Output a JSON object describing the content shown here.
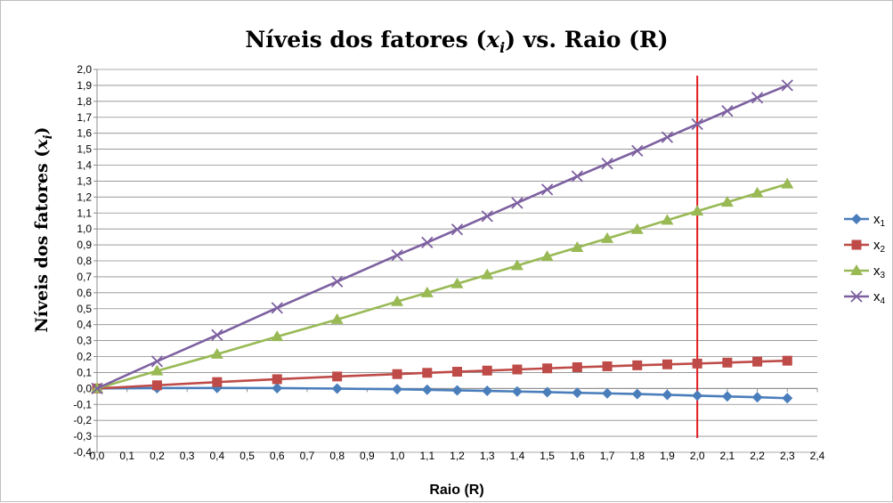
{
  "chart_data": {
    "type": "line",
    "title_main": "Níveis dos fatores (",
    "title_var": "x",
    "title_sub": "i",
    "title_end": ") vs. Raio (R)",
    "ylabel_main": "Níveis dos fatores (",
    "ylabel_var": "x",
    "ylabel_sub": "i",
    "ylabel_end": ")",
    "xlabel": "Raio (R)",
    "xlim": [
      0.0,
      2.4
    ],
    "ylim": [
      -0.4,
      2.0
    ],
    "x_ticks": [
      "0,0",
      "0,1",
      "0,2",
      "0,3",
      "0,4",
      "0,5",
      "0,6",
      "0,7",
      "0,8",
      "0,9",
      "1,0",
      "1,1",
      "1,2",
      "1,3",
      "1,4",
      "1,5",
      "1,6",
      "1,7",
      "1,8",
      "1,9",
      "2,0",
      "2,1",
      "2,2",
      "2,3",
      "2,4"
    ],
    "y_ticks": [
      "-0,4",
      "-0,3",
      "-0,2",
      "-0,1",
      "0,0",
      "0,1",
      "0,2",
      "0,3",
      "0,4",
      "0,5",
      "0,6",
      "0,7",
      "0,8",
      "0,9",
      "1,0",
      "1,1",
      "1,2",
      "1,3",
      "1,4",
      "1,5",
      "1,6",
      "1,7",
      "1,8",
      "1,9",
      "2,0"
    ],
    "grid": true,
    "legend_position": "right",
    "vertical_line": {
      "x": 2.0,
      "color": "#e31a1c"
    },
    "x": [
      0.0,
      0.2,
      0.4,
      0.6,
      0.8,
      1.0,
      1.1,
      1.2,
      1.3,
      1.4,
      1.5,
      1.6,
      1.7,
      1.8,
      1.9,
      2.0,
      2.1,
      2.2,
      2.3
    ],
    "series": [
      {
        "name": "x",
        "sub": "1",
        "color": "#4a7ebb",
        "marker": "diamond",
        "values": [
          0.0,
          0.002,
          0.003,
          0.002,
          -0.001,
          -0.005,
          -0.008,
          -0.012,
          -0.015,
          -0.019,
          -0.023,
          -0.027,
          -0.031,
          -0.035,
          -0.04,
          -0.045,
          -0.05,
          -0.055,
          -0.061
        ]
      },
      {
        "name": "x",
        "sub": "2",
        "color": "#be4b48",
        "marker": "square",
        "values": [
          0.0,
          0.02,
          0.04,
          0.058,
          0.075,
          0.09,
          0.098,
          0.105,
          0.112,
          0.119,
          0.126,
          0.133,
          0.139,
          0.145,
          0.151,
          0.156,
          0.162,
          0.168,
          0.174
        ]
      },
      {
        "name": "x",
        "sub": "3",
        "color": "#98b954",
        "marker": "triangle",
        "values": [
          0.0,
          0.11,
          0.215,
          0.325,
          0.432,
          0.545,
          0.6,
          0.656,
          0.713,
          0.77,
          0.827,
          0.884,
          0.94,
          0.997,
          1.055,
          1.112,
          1.168,
          1.225,
          1.282
        ]
      },
      {
        "name": "x",
        "sub": "4",
        "color": "#7d60a0",
        "marker": "x",
        "values": [
          0.0,
          0.17,
          0.335,
          0.505,
          0.67,
          0.835,
          0.915,
          0.997,
          1.08,
          1.163,
          1.247,
          1.33,
          1.41,
          1.49,
          1.575,
          1.657,
          1.74,
          1.823,
          1.9
        ]
      }
    ]
  }
}
